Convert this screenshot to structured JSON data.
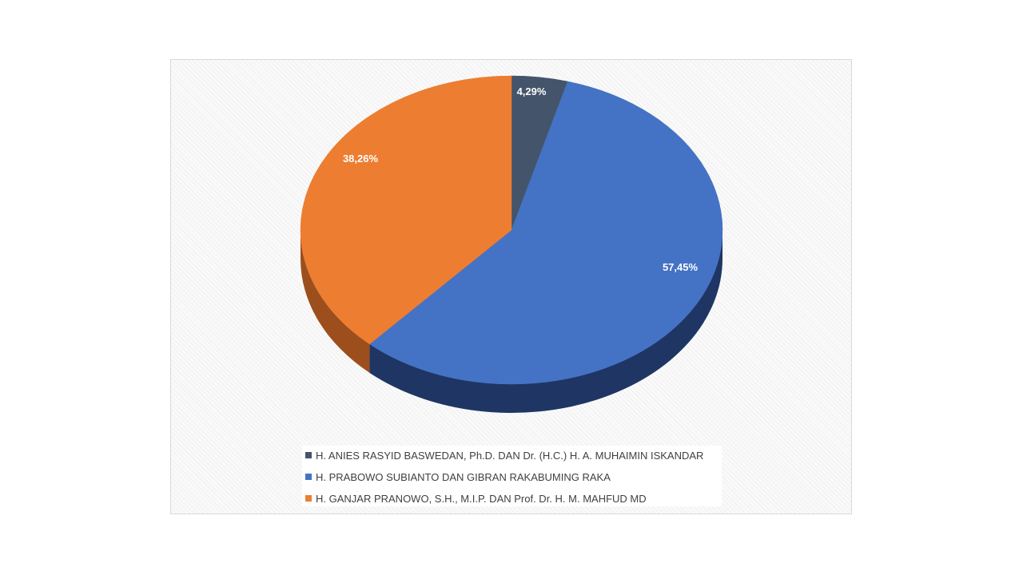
{
  "chart_data": {
    "type": "pie",
    "title": "",
    "style": "3d",
    "slices": [
      {
        "label": "H. ANIES RASYID BASWEDAN, Ph.D. DAN Dr. (H.C.) H. A. MUHAIMIN ISKANDAR",
        "value": 4.29,
        "value_label": "4,29%",
        "color": "#44546a",
        "side_color": "#2b3442"
      },
      {
        "label": "H. PRABOWO SUBIANTO DAN GIBRAN RAKABUMING RAKA",
        "value": 57.45,
        "value_label": "57,45%",
        "color": "#4472c4",
        "side_color": "#1f3564"
      },
      {
        "label": "H. GANJAR PRANOWO, S.H., M.I.P. DAN Prof. Dr. H. M. MAHFUD MD",
        "value": 38.26,
        "value_label": "38,26%",
        "color": "#ed7d31",
        "side_color": "#9c4f1c"
      }
    ],
    "legend_position": "bottom"
  }
}
